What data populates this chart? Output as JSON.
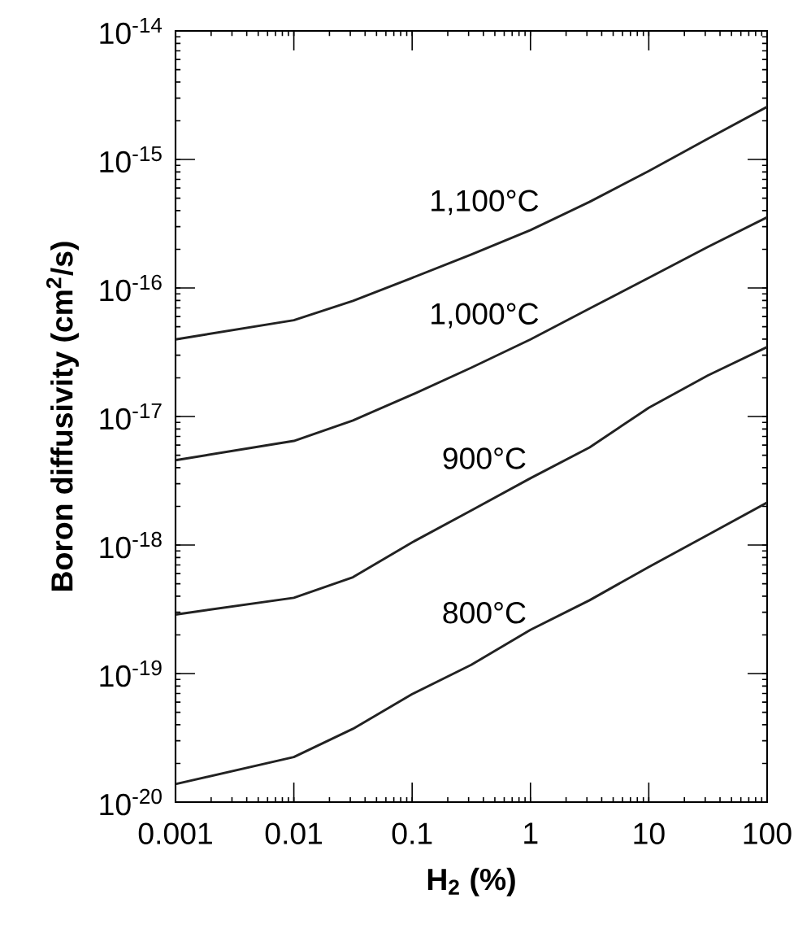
{
  "chart_data": {
    "type": "line",
    "xlabel": "H$_{2}$ (%)",
    "ylabel": "Boron diffusivity (cm$^{2}$/s)",
    "log": "xy",
    "grid": false,
    "marker": "none",
    "line_style": "solid",
    "xlim": [
      0.001,
      100
    ],
    "ylim": [
      1e-20,
      1e-14
    ],
    "xticks": [
      0.001,
      0.01,
      0.1,
      1,
      10,
      100
    ],
    "yticks": [
      {
        "value": 1e-20,
        "label": "10$^{-20}$"
      },
      {
        "value": 1e-19,
        "label": "10$^{-19}$"
      },
      {
        "value": 1e-18,
        "label": "10$^{-18}$"
      },
      {
        "value": 1e-17,
        "label": "10$^{-17}$"
      },
      {
        "value": 1e-16,
        "label": "10$^{-16}$"
      },
      {
        "value": 1e-15,
        "label": "10$^{-15}$"
      },
      {
        "value": 1e-14,
        "label": "10$^{-14}$"
      }
    ],
    "x": [
      0.001,
      0.01,
      0.0316,
      0.1,
      0.316,
      1,
      3.16,
      10,
      31.6,
      100
    ],
    "series": [
      {
        "name": "1,100°C",
        "color": "#222222",
        "values": [
          3.98e-17,
          5.62e-17,
          7.94e-17,
          1.2e-16,
          1.82e-16,
          2.82e-16,
          4.68e-16,
          8.13e-16,
          1.45e-15,
          2.57e-15
        ]
      },
      {
        "name": "1,000°C",
        "color": "#222222",
        "values": [
          4.57e-18,
          6.46e-18,
          9.33e-18,
          1.48e-17,
          2.4e-17,
          3.98e-17,
          6.92e-17,
          1.2e-16,
          2.09e-16,
          3.55e-16
        ]
      },
      {
        "name": "900°C",
        "color": "#222222",
        "values": [
          2.88e-19,
          3.89e-19,
          5.62e-19,
          1.05e-18,
          1.86e-18,
          3.31e-18,
          5.75e-18,
          1.17e-17,
          2.09e-17,
          3.47e-17
        ]
      },
      {
        "name": "800°C",
        "color": "#222222",
        "values": [
          1.38e-20,
          2.24e-20,
          3.72e-20,
          6.92e-20,
          1.17e-19,
          2.19e-19,
          3.72e-19,
          6.76e-19,
          1.2e-18,
          2.14e-18
        ]
      }
    ]
  }
}
